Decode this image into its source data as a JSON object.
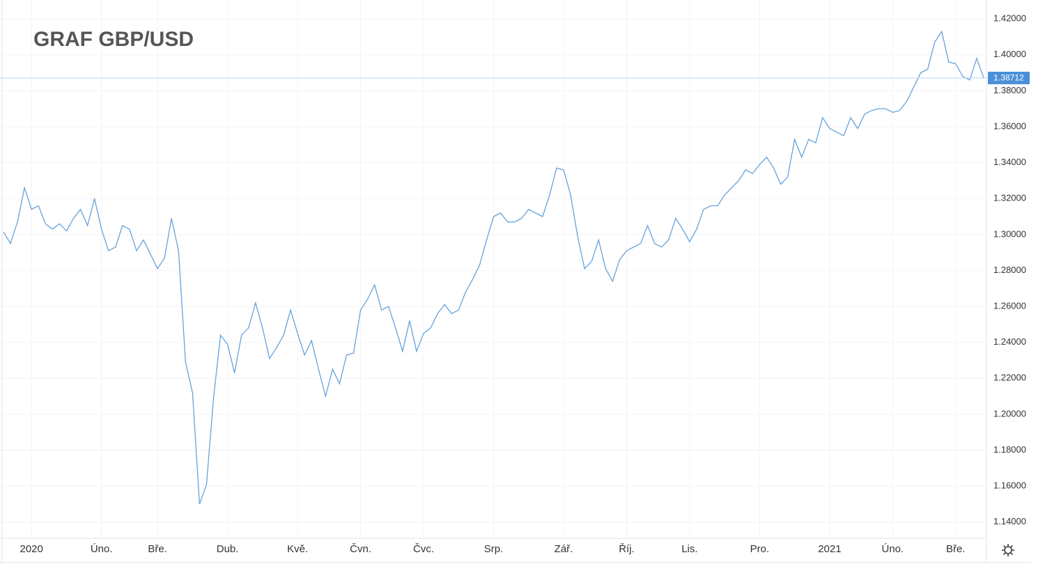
{
  "chart_data": {
    "type": "line",
    "title": "GRAF GBP/USD",
    "categories": [
      null,
      null,
      null,
      null,
      "2020",
      null,
      null,
      null,
      null,
      null,
      null,
      null,
      null,
      null,
      "Úno.",
      null,
      null,
      null,
      null,
      null,
      null,
      null,
      "Bře.",
      null,
      null,
      null,
      null,
      null,
      null,
      null,
      null,
      null,
      "Dub.",
      null,
      null,
      null,
      null,
      null,
      null,
      null,
      null,
      null,
      "Kvě.",
      null,
      null,
      null,
      null,
      null,
      null,
      null,
      null,
      "Čvn.",
      null,
      null,
      null,
      null,
      null,
      null,
      null,
      null,
      "Čvc.",
      null,
      null,
      null,
      null,
      null,
      null,
      null,
      null,
      null,
      "Srp.",
      null,
      null,
      null,
      null,
      null,
      null,
      null,
      null,
      null,
      "Zář.",
      null,
      null,
      null,
      null,
      null,
      null,
      null,
      null,
      "Říj.",
      null,
      null,
      null,
      null,
      null,
      null,
      null,
      null,
      "Lis.",
      null,
      null,
      null,
      null,
      null,
      null,
      null,
      null,
      null,
      "Pro.",
      null,
      null,
      null,
      null,
      null,
      null,
      null,
      null,
      null,
      "2021",
      null,
      null,
      null,
      null,
      null,
      null,
      null,
      null,
      "Úno.",
      null,
      null,
      null,
      null,
      null,
      null,
      null,
      null,
      "Bře.",
      null,
      null,
      null,
      null
    ],
    "series": [
      {
        "name": "GBP/USD",
        "color": "#64a2dc",
        "values": [
          1.3015,
          1.295,
          1.307,
          1.326,
          1.314,
          1.316,
          1.306,
          1.303,
          1.306,
          1.302,
          1.309,
          1.314,
          1.305,
          1.32,
          1.303,
          1.291,
          1.293,
          1.305,
          1.303,
          1.291,
          1.297,
          1.289,
          1.281,
          1.287,
          1.309,
          1.291,
          1.229,
          1.212,
          1.15,
          1.161,
          1.209,
          1.244,
          1.239,
          1.223,
          1.244,
          1.248,
          1.262,
          1.248,
          1.231,
          1.237,
          1.244,
          1.258,
          1.245,
          1.233,
          1.241,
          1.225,
          1.21,
          1.225,
          1.217,
          1.233,
          1.234,
          1.258,
          1.264,
          1.272,
          1.258,
          1.26,
          1.248,
          1.235,
          1.252,
          1.235,
          1.245,
          1.248,
          1.256,
          1.261,
          1.256,
          1.258,
          1.268,
          1.275,
          1.283,
          1.297,
          1.31,
          1.312,
          1.307,
          1.307,
          1.309,
          1.314,
          1.312,
          1.31,
          1.322,
          1.337,
          1.336,
          1.322,
          1.299,
          1.281,
          1.285,
          1.297,
          1.281,
          1.274,
          1.286,
          1.291,
          1.293,
          1.295,
          1.305,
          1.295,
          1.293,
          1.297,
          1.309,
          1.303,
          1.296,
          1.303,
          1.314,
          1.316,
          1.316,
          1.322,
          1.326,
          1.33,
          1.336,
          1.334,
          1.339,
          1.343,
          1.337,
          1.328,
          1.332,
          1.353,
          1.343,
          1.353,
          1.351,
          1.365,
          1.359,
          1.357,
          1.355,
          1.365,
          1.359,
          1.367,
          1.369,
          1.37,
          1.37,
          1.368,
          1.369,
          1.374,
          1.382,
          1.39,
          1.392,
          1.407,
          1.413,
          1.396,
          1.395,
          1.388,
          1.386,
          1.398,
          1.38712
        ]
      }
    ],
    "ylim": [
      1.131,
      1.4305
    ],
    "yticks": [
      {
        "value": 1.14,
        "label": "1.14000"
      },
      {
        "value": 1.16,
        "label": "1.16000"
      },
      {
        "value": 1.18,
        "label": "1.18000"
      },
      {
        "value": 1.2,
        "label": "1.20000"
      },
      {
        "value": 1.22,
        "label": "1.22000"
      },
      {
        "value": 1.24,
        "label": "1.24000"
      },
      {
        "value": 1.26,
        "label": "1.26000"
      },
      {
        "value": 1.28,
        "label": "1.28000"
      },
      {
        "value": 1.3,
        "label": "1.30000"
      },
      {
        "value": 1.32,
        "label": "1.32000"
      },
      {
        "value": 1.34,
        "label": "1.34000"
      },
      {
        "value": 1.36,
        "label": "1.36000"
      },
      {
        "value": 1.38,
        "label": "1.38000"
      },
      {
        "value": 1.4,
        "label": "1.40000"
      },
      {
        "value": 1.42,
        "label": "1.42000"
      }
    ],
    "price_line": {
      "value": 1.38712,
      "label": "1.38712"
    },
    "grid": true
  }
}
